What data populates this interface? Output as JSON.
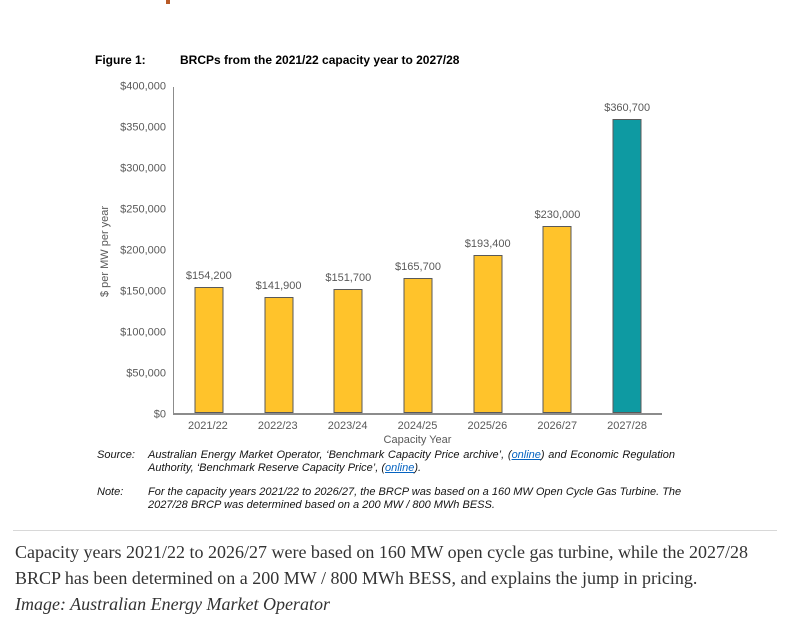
{
  "figure": {
    "label": "Figure 1:",
    "title": "BRCPs from the 2021/22 capacity year to 2027/28"
  },
  "chart_data": {
    "type": "bar",
    "title": "BRCPs from the 2021/22 capacity year to 2027/28",
    "categories": [
      "2021/22",
      "2022/23",
      "2023/24",
      "2024/25",
      "2025/26",
      "2026/27",
      "2027/28"
    ],
    "values": [
      154200,
      141900,
      151700,
      165700,
      193400,
      230000,
      360700
    ],
    "data_labels": [
      "$154,200",
      "$141,900",
      "$151,700",
      "$165,700",
      "$193,400",
      "$230,000",
      "$360,700"
    ],
    "colors": [
      "#FFC32B",
      "#FFC32B",
      "#FFC32B",
      "#FFC32B",
      "#FFC32B",
      "#FFC32B",
      "#0E9AA2"
    ],
    "xlabel": "Capacity Year",
    "ylabel": "$ per MW per year",
    "ylim": [
      0,
      400000
    ],
    "ytick_interval": 50000,
    "ytick_labels": [
      "$0",
      "$50,000",
      "$100,000",
      "$150,000",
      "$200,000",
      "$250,000",
      "$300,000",
      "$350,000",
      "$400,000"
    ],
    "grid": false,
    "legend": "none",
    "label_color": "#595959",
    "axis_color": "#8c8c8c"
  },
  "source": {
    "label": "Source:",
    "part1": "Australian Energy Market Operator, ‘Benchmark Capacity Price archive’, (",
    "link1": "online",
    "part2": ") and Economic Regulation Authority, ‘Benchmark Reserve Capacity Price’, (",
    "link2": "online",
    "part3": ")."
  },
  "note": {
    "label": "Note:",
    "text": "For the capacity years 2021/22 to 2026/27, the BRCP was based on a 160 MW Open Cycle Gas Turbine. The 2027/28 BRCP was determined based on a 200 MW / 800 MWh BESS."
  },
  "body": {
    "paragraph": "Capacity years 2021/22 to 2026/27 were based on 160 MW open cycle gas turbine, while the 2027/28 BRCP has been determined on a 200 MW / 800 MWh BESS, and explains the jump in pricing.",
    "credit": "Image: Australian Energy Market Operator"
  }
}
